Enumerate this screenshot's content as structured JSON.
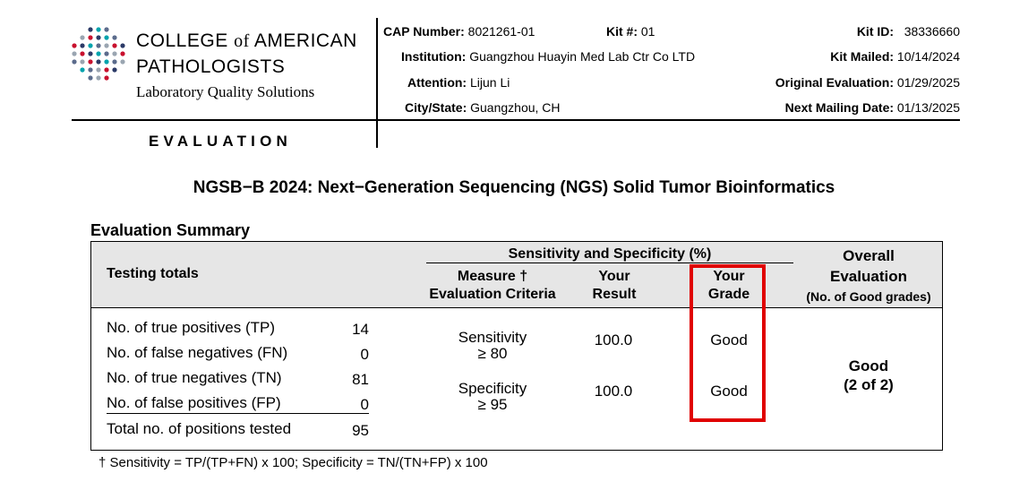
{
  "logo": {
    "org_line1_a": "COLLEGE",
    "org_line1_of": "of",
    "org_line1_b": "AMERICAN",
    "org_line2": "PATHOLOGISTS",
    "tagline": "Laboratory Quality Solutions",
    "dot_colors": [
      "#2b3a67",
      "#5b6b8c",
      "#c8102e",
      "#00a3ad",
      "#9aa5b1"
    ]
  },
  "header": {
    "section_label": "EVALUATION",
    "cap_number_label": "CAP Number:",
    "cap_number": "8021261-01",
    "kit_number_label": "Kit #:",
    "kit_number": "01",
    "institution_label": "Institution:",
    "institution": "Guangzhou Huayin Med Lab Ctr Co LTD",
    "attention_label": "Attention:",
    "attention": "Lijun Li",
    "city_state_label": "City/State:",
    "city_state": "Guangzhou, CH",
    "kit_id_label": "Kit ID:",
    "kit_id": "38336660",
    "kit_mailed_label": "Kit Mailed:",
    "kit_mailed": "10/14/2024",
    "original_evaluation_label": "Original Evaluation:",
    "original_evaluation": "01/29/2025",
    "next_mailing_label": "Next Mailing Date:",
    "next_mailing": "01/13/2025"
  },
  "title": "NGSB−B 2024: Next−Generation Sequencing (NGS) Solid Tumor Bioinformatics",
  "summary": {
    "heading": "Evaluation Summary",
    "col_testing": "Testing totals",
    "col_sens_spec": "Sensitivity and Specificity (%)",
    "col_measure_1": "Measure †",
    "col_measure_2": "Evaluation Criteria",
    "col_result_1": "Your",
    "col_result_2": "Result",
    "col_grade_1": "Your",
    "col_grade_2": "Grade",
    "col_overall_1": "Overall",
    "col_overall_2": "Evaluation",
    "col_overall_3": "(No. of Good grades)",
    "totals": [
      {
        "label": "No. of true positives (TP)",
        "value": "14"
      },
      {
        "label": "No. of false negatives (FN)",
        "value": "0"
      },
      {
        "label": "No. of true negatives (TN)",
        "value": "81"
      },
      {
        "label": "No. of false positives (FP)",
        "value": "0"
      },
      {
        "label": "Total no. of positions tested",
        "value": "95"
      }
    ],
    "measures": [
      {
        "name": "Sensitivity",
        "criteria": "≥ 80",
        "result": "100.0",
        "grade": "Good"
      },
      {
        "name": "Specificity",
        "criteria": "≥ 95",
        "result": "100.0",
        "grade": "Good"
      }
    ],
    "overall_grade": "Good",
    "overall_count": "(2 of 2)"
  },
  "footnote": "† Sensitivity = TP/(TP+FN) x 100; Specificity = TN/(TN+FP) x 100",
  "highlight_color": "#e00000"
}
